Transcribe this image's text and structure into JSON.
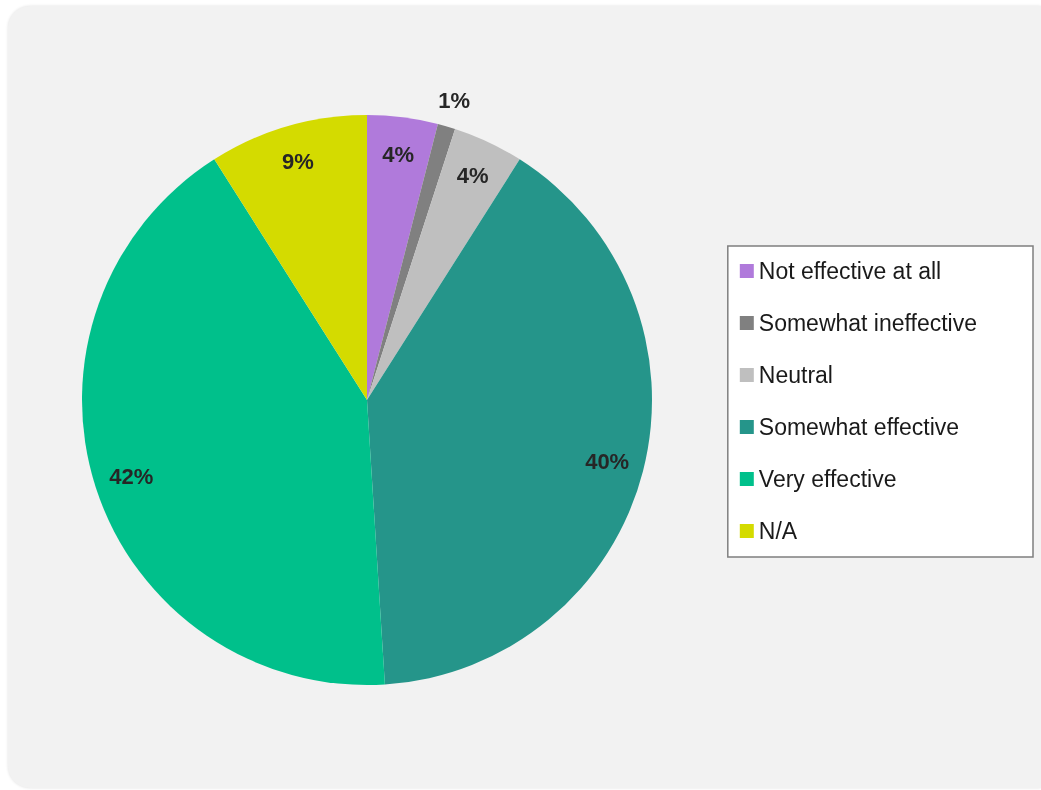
{
  "chart_data": {
    "type": "pie",
    "categories": [
      "Not effective at all",
      "Somewhat ineffective",
      "Neutral",
      "Somewhat effective",
      "Very effective",
      "N/A"
    ],
    "values": [
      4,
      1,
      4,
      40,
      42,
      9
    ],
    "colors": [
      "#b07adb",
      "#808080",
      "#bfbfbf",
      "#25958a",
      "#00c08b",
      "#d4db00"
    ],
    "value_labels": [
      "4%",
      "1%",
      "4%",
      "40%",
      "42%",
      "9%"
    ],
    "legend": "right"
  }
}
